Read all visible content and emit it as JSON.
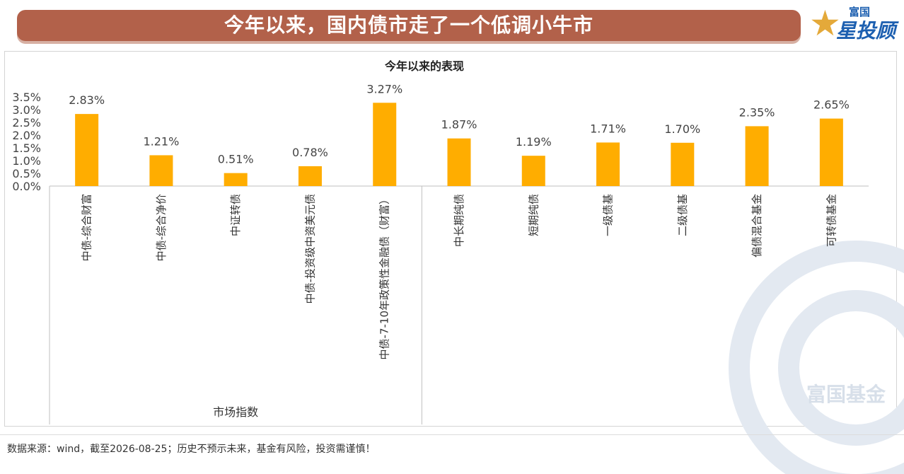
{
  "header": {
    "title": "今年以来，国内债市走了一个低调小牛市",
    "logo_top": "富国",
    "logo_main": "星投顾"
  },
  "watermark": {
    "text": "富国基金"
  },
  "footer": {
    "source": "数据来源：wind，截至2026-08-25；历史不预示未来，基金有风险，投资需谨慎！"
  },
  "chart_data": {
    "type": "bar",
    "title": "今年以来的表现",
    "categories": [
      "中债-综合财富",
      "中债-综合净价",
      "中证转债",
      "中债-投资级中资美元债",
      "中债-7-10年政策性金融债（财富）",
      "中长期纯债",
      "短期纯债",
      "一级债基",
      "二级债基",
      "偏债混合基金",
      "可转债基金"
    ],
    "values": [
      2.83,
      1.21,
      0.51,
      0.78,
      3.27,
      1.87,
      1.19,
      1.71,
      1.7,
      2.35,
      2.65
    ],
    "value_labels": [
      "2.83%",
      "1.21%",
      "0.51%",
      "0.78%",
      "3.27%",
      "1.87%",
      "1.19%",
      "1.71%",
      "1.70%",
      "2.35%",
      "2.65%"
    ],
    "y_ticks": [
      "0.0%",
      "0.5%",
      "1.0%",
      "1.5%",
      "2.0%",
      "2.5%",
      "3.0%",
      "3.5%"
    ],
    "ylim": [
      0,
      3.5
    ],
    "groups": [
      {
        "label": "市场指数",
        "count": 5
      },
      {
        "label": "",
        "count": 6
      }
    ],
    "bar_color": "#ffad00",
    "grid": false,
    "legend": false
  }
}
